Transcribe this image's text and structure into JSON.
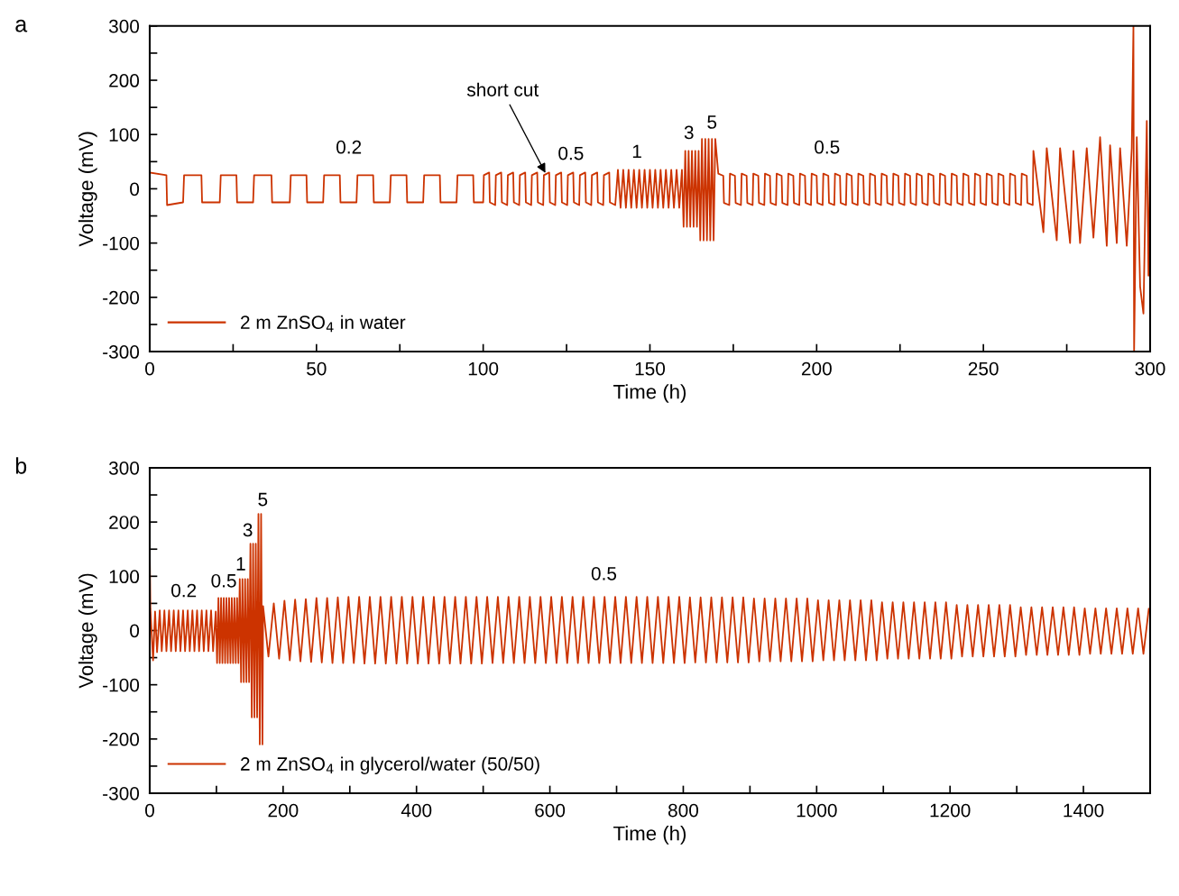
{
  "chart_data": [
    {
      "type": "line",
      "xlabel": "Time (h)",
      "ylabel": "Voltage (mV)",
      "xlim": [
        0,
        300
      ],
      "ylim": [
        -300,
        300
      ],
      "xticks": [
        0,
        {
          "value": 25,
          "label": null
        },
        50,
        {
          "value": 75,
          "label": null
        },
        100,
        {
          "value": 125,
          "label": null
        },
        150,
        {
          "value": 175,
          "label": null
        },
        200,
        {
          "value": 225,
          "label": null
        },
        250,
        {
          "value": 275,
          "label": null
        },
        300
      ],
      "yticks": [
        -300,
        {
          "value": -250,
          "label": null
        },
        -200,
        {
          "value": -150,
          "label": null
        },
        -100,
        {
          "value": -50,
          "label": null
        },
        0,
        {
          "value": 50,
          "label": null
        },
        100,
        {
          "value": 150,
          "label": null
        },
        200,
        {
          "value": 250,
          "label": null
        },
        300
      ],
      "legend": "bottom left",
      "grid": false,
      "annotations": [
        "a",
        "0.2",
        {
          "text": "short cut",
          "x": 119,
          "y": 25
        },
        "0.5",
        "1",
        "3",
        "5",
        "0.5"
      ],
      "series": [
        {
          "name": "2 m ZnSO$_{4}$ in water",
          "color": "#cc3300",
          "x": [
            0,
            5,
            5.2,
            10,
            10.3,
            15.5,
            15.7,
            21,
            21.3,
            26,
            26.2,
            31,
            31.3,
            36.5,
            36.7,
            42,
            42.3,
            47,
            47.2,
            52,
            52.3,
            57,
            57.2,
            62,
            62.3,
            67,
            67.2,
            72,
            72.3,
            77,
            77.2,
            82,
            82.3,
            87,
            87.2,
            92,
            92.3,
            97,
            97.2,
            100,
            100.2,
            101.8,
            102,
            103.6,
            103.8,
            105.4,
            105.6,
            107.2,
            107.4,
            109,
            109.2,
            110.8,
            111,
            112.6,
            112.8,
            114.4,
            114.6,
            116.2,
            116.4,
            118,
            118.2,
            119.8,
            120,
            121.6,
            121.8,
            123.4,
            123.6,
            125.2,
            125.4,
            127,
            127.2,
            128.8,
            129,
            130.6,
            130.8,
            132.4,
            132.6,
            134.2,
            134.4,
            136,
            136.2,
            137.8,
            138,
            139.6,
            140.4,
            141.2,
            142,
            142.8,
            143.6,
            144.4,
            145.2,
            146,
            146.8,
            147.6,
            148.4,
            149.2,
            150,
            150.8,
            151.6,
            152.4,
            153.2,
            154,
            154.8,
            155.6,
            156.4,
            157.2,
            158,
            158.8,
            159.6,
            160.1,
            160.6,
            161.1,
            161.6,
            162.1,
            162.6,
            163.1,
            163.6,
            164.1,
            164.6,
            165.1,
            165.6,
            166.1,
            166.6,
            167.1,
            167.6,
            168.1,
            168.6,
            169.1,
            169.6,
            170.5,
            172,
            172.2,
            173.8,
            174,
            175.5,
            175.7,
            177.3,
            177.5,
            179,
            179.2,
            180.8,
            181,
            182.5,
            182.7,
            184.3,
            184.5,
            186,
            186.2,
            187.8,
            188,
            189.5,
            189.7,
            191.3,
            191.5,
            193,
            193.2,
            194.8,
            195,
            196.5,
            196.7,
            198.3,
            198.5,
            200,
            200.2,
            201.8,
            202,
            203.5,
            203.7,
            205.3,
            205.5,
            207,
            207.2,
            208.8,
            209,
            210.5,
            210.7,
            212.3,
            212.5,
            214,
            214.2,
            215.8,
            216,
            217.5,
            217.7,
            219.3,
            219.5,
            221,
            221.2,
            222.8,
            223,
            224.5,
            224.7,
            226.3,
            226.5,
            228,
            228.2,
            229.8,
            230,
            231.5,
            231.7,
            233.3,
            233.5,
            235,
            235.2,
            236.8,
            237,
            238.5,
            238.7,
            240.3,
            240.5,
            242,
            242.2,
            243.8,
            244,
            245.5,
            245.7,
            247.3,
            247.5,
            249,
            249.2,
            250.8,
            251,
            252.5,
            252.7,
            254.3,
            254.5,
            256,
            256.2,
            257.8,
            258,
            259.5,
            259.7,
            261.3,
            261.5,
            263,
            263.2,
            264.8,
            265,
            268,
            269,
            272,
            273,
            276,
            277,
            279,
            281,
            283,
            285,
            287,
            288,
            290,
            291,
            293,
            294.5,
            295,
            295.2,
            296,
            297,
            298,
            299,
            299.5,
            300
          ],
          "values": [
            30,
            25,
            -30,
            -25,
            25,
            25,
            -25,
            -25,
            25,
            25,
            -25,
            -25,
            25,
            25,
            -25,
            -25,
            25,
            25,
            -25,
            -25,
            25,
            25,
            -25,
            -25,
            25,
            25,
            -25,
            -25,
            25,
            25,
            -25,
            -25,
            25,
            25,
            -25,
            -25,
            25,
            25,
            -25,
            -25,
            25,
            30,
            -25,
            -30,
            25,
            30,
            -25,
            -30,
            25,
            30,
            -25,
            -30,
            25,
            30,
            -25,
            -30,
            25,
            30,
            -25,
            -30,
            25,
            30,
            -25,
            -30,
            25,
            30,
            -25,
            -30,
            25,
            30,
            -25,
            -30,
            25,
            30,
            -25,
            -30,
            25,
            30,
            -25,
            -30,
            25,
            30,
            -25,
            -30,
            35,
            -35,
            35,
            -35,
            35,
            -35,
            35,
            -35,
            35,
            -35,
            35,
            -35,
            35,
            -35,
            35,
            -35,
            35,
            -35,
            35,
            -35,
            35,
            -35,
            35,
            -35,
            35,
            -70,
            70,
            -70,
            70,
            -70,
            70,
            -70,
            70,
            -70,
            70,
            -95,
            92,
            -95,
            92,
            -95,
            92,
            -95,
            92,
            -95,
            92,
            28,
            24,
            -26,
            -30,
            28,
            24,
            -26,
            -30,
            28,
            24,
            -26,
            -30,
            28,
            24,
            -26,
            -30,
            28,
            24,
            -26,
            -30,
            28,
            24,
            -26,
            -30,
            28,
            24,
            -26,
            -30,
            28,
            24,
            -26,
            -30,
            28,
            24,
            -26,
            -30,
            28,
            24,
            -26,
            -30,
            28,
            24,
            -26,
            -30,
            28,
            24,
            -26,
            -30,
            28,
            24,
            -26,
            -30,
            28,
            24,
            -26,
            -30,
            28,
            24,
            -26,
            -30,
            28,
            24,
            -26,
            -30,
            28,
            24,
            -26,
            -30,
            28,
            24,
            -26,
            -30,
            28,
            24,
            -26,
            -30,
            28,
            24,
            -26,
            -30,
            28,
            24,
            -26,
            -30,
            28,
            24,
            -26,
            -30,
            28,
            24,
            -26,
            -30,
            28,
            24,
            -26,
            -30,
            28,
            24,
            -26,
            -30,
            28,
            24,
            -26,
            -30,
            28,
            24,
            -26,
            -30,
            70,
            -80,
            75,
            -95,
            75,
            -100,
            70,
            -100,
            75,
            -90,
            95,
            -105,
            80,
            -100,
            75,
            -105,
            75,
            300,
            -300,
            95,
            -180,
            -230,
            125,
            -160,
            50
          ]
        }
      ]
    },
    {
      "type": "line",
      "xlabel": "Time (h)",
      "ylabel": "Voltage (mV)",
      "xlim": [
        0,
        1500
      ],
      "ylim": [
        -300,
        300
      ],
      "xticks": [
        0,
        {
          "value": 100,
          "label": null
        },
        200,
        {
          "value": 300,
          "label": null
        },
        400,
        {
          "value": 500,
          "label": null
        },
        600,
        {
          "value": 700,
          "label": null
        },
        800,
        {
          "value": 900,
          "label": null
        },
        1000,
        {
          "value": 1100,
          "label": null
        },
        1200,
        {
          "value": 1300,
          "label": null
        },
        1400,
        {
          "value": 1500,
          "label": null
        }
      ],
      "yticks": [
        -300,
        {
          "value": -250,
          "label": null
        },
        -200,
        {
          "value": -150,
          "label": null
        },
        -100,
        {
          "value": -50,
          "label": null
        },
        0,
        {
          "value": 50,
          "label": null
        },
        100,
        {
          "value": 150,
          "label": null
        },
        200,
        {
          "value": 250,
          "label": null
        },
        300
      ],
      "legend": "bottom left",
      "grid": false,
      "annotations": [
        "b",
        "0.2",
        "0.5",
        "1",
        "3",
        "5",
        "0.5"
      ],
      "series": [
        {
          "name": "2 m ZnSO$_{4}$ in glycerol/water (50/50)",
          "color": "#cc3300",
          "x": [
            0,
            1,
            5,
            8,
            11,
            15,
            18,
            22,
            25,
            29,
            32,
            36,
            39,
            43,
            46,
            50,
            53,
            57,
            60,
            64,
            67,
            71,
            74,
            78,
            81,
            85,
            88,
            92,
            95,
            99,
            101,
            103,
            105,
            107,
            109,
            111,
            113,
            115,
            117,
            119,
            121,
            123,
            125,
            127,
            129,
            131,
            133,
            135,
            137,
            139,
            141,
            143,
            145,
            147,
            149,
            151,
            153,
            155,
            157,
            159,
            161,
            163,
            165,
            167,
            169,
            170,
            178,
            186,
            194,
            202,
            210,
            218,
            226,
            234,
            242,
            250,
            258,
            266,
            274,
            282,
            290,
            298,
            306,
            314,
            322,
            330,
            338,
            346,
            354,
            362,
            370,
            378,
            386,
            394,
            402,
            410,
            418,
            426,
            434,
            442,
            450,
            458,
            466,
            474,
            482,
            490,
            498,
            506,
            514,
            522,
            530,
            538,
            546,
            554,
            562,
            570,
            578,
            586,
            594,
            602,
            610,
            618,
            626,
            634,
            642,
            650,
            658,
            666,
            674,
            682,
            690,
            698,
            706,
            714,
            722,
            730,
            738,
            746,
            754,
            762,
            770,
            778,
            786,
            794,
            802,
            810,
            818,
            826,
            834,
            842,
            850,
            858,
            866,
            874,
            882,
            890,
            898,
            906,
            914,
            922,
            930,
            938,
            946,
            954,
            962,
            970,
            978,
            986,
            994,
            1002,
            1010,
            1018,
            1026,
            1034,
            1042,
            1050,
            1058,
            1066,
            1074,
            1082,
            1090,
            1098,
            1106,
            1114,
            1122,
            1130,
            1138,
            1146,
            1154,
            1162,
            1170,
            1178,
            1186,
            1194,
            1202,
            1210,
            1218,
            1226,
            1234,
            1242,
            1250,
            1258,
            1266,
            1274,
            1282,
            1290,
            1298,
            1306,
            1314,
            1322,
            1330,
            1338,
            1346,
            1354,
            1362,
            1370,
            1378,
            1386,
            1394,
            1402,
            1410,
            1418,
            1426,
            1434,
            1442,
            1450,
            1458,
            1466,
            1474,
            1482,
            1490,
            1498
          ],
          "values": [
            150,
            40,
            -55,
            35,
            -40,
            37,
            -38,
            37,
            -38,
            37,
            -38,
            37,
            -38,
            37,
            -38,
            37,
            -38,
            37,
            -38,
            37,
            -38,
            37,
            -38,
            37,
            -38,
            37,
            -38,
            37,
            -38,
            35,
            -60,
            60,
            -60,
            60,
            -60,
            60,
            -60,
            60,
            -60,
            60,
            -60,
            60,
            -60,
            60,
            -60,
            60,
            -60,
            95,
            -95,
            95,
            -95,
            95,
            -95,
            95,
            -95,
            160,
            -160,
            160,
            -160,
            160,
            -160,
            215,
            -210,
            215,
            -210,
            45,
            -48,
            50,
            -52,
            55,
            -55,
            57,
            -57,
            58,
            -58,
            60,
            -59,
            60,
            -60,
            61,
            -60,
            62,
            -60,
            62,
            -61,
            62,
            -61,
            62,
            -61,
            62,
            -61,
            62,
            -61,
            62,
            -61,
            62,
            -61,
            62,
            -61,
            62,
            -61,
            62,
            -61,
            62,
            -61,
            62,
            -61,
            62,
            -60,
            62,
            -60,
            62,
            -60,
            62,
            -60,
            62,
            -60,
            62,
            -60,
            62,
            -60,
            62,
            -60,
            62,
            -60,
            62,
            -60,
            62,
            -60,
            62,
            -60,
            62,
            -60,
            62,
            -60,
            62,
            -60,
            62,
            -60,
            62,
            -60,
            62,
            -60,
            62,
            -60,
            61,
            -59,
            61,
            -59,
            61,
            -59,
            61,
            -59,
            61,
            -59,
            61,
            -59,
            59,
            -57,
            59,
            -57,
            59,
            -57,
            59,
            -57,
            59,
            -57,
            59,
            -57,
            56,
            -55,
            56,
            -55,
            56,
            -55,
            56,
            -55,
            56,
            -55,
            56,
            -55,
            52,
            -52,
            52,
            -52,
            52,
            -52,
            52,
            -52,
            52,
            -52,
            52,
            -52,
            52,
            -52,
            47,
            -48,
            47,
            -48,
            47,
            -48,
            47,
            -48,
            47,
            -48,
            47,
            -48,
            43,
            -45,
            43,
            -45,
            43,
            -45,
            43,
            -45,
            43,
            -45,
            43,
            -45,
            41,
            -43,
            41,
            -43,
            41,
            -43,
            41,
            -43,
            41,
            -43,
            41,
            -43,
            40
          ]
        }
      ]
    }
  ]
}
